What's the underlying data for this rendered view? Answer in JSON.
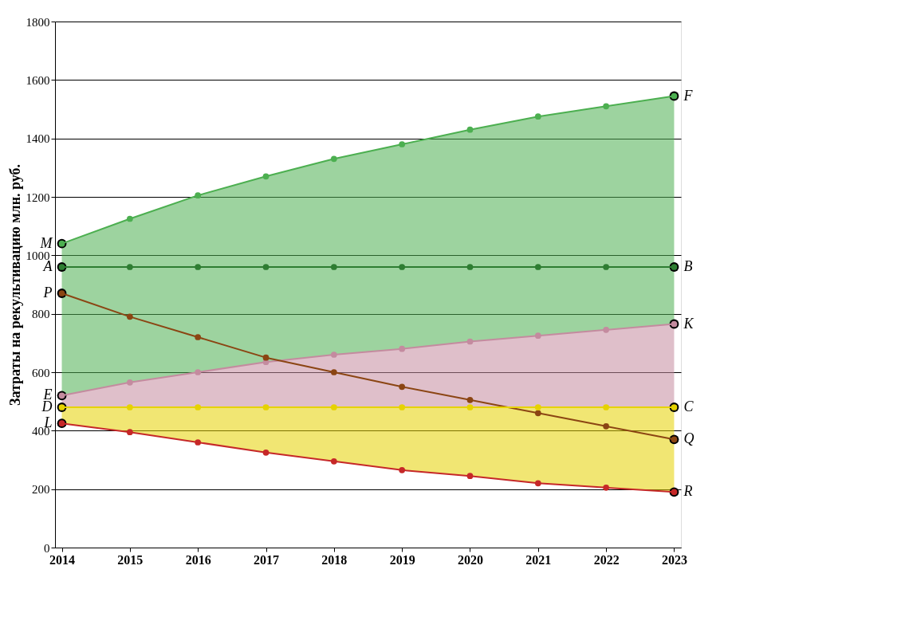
{
  "chart_data": {
    "type": "line",
    "ylabel": "Затраты на рекультивацию млн. руб.",
    "categories": [
      "2014",
      "2015",
      "2016",
      "2017",
      "2018",
      "2019",
      "2020",
      "2021",
      "2022",
      "2023"
    ],
    "series": [
      {
        "color": "#4caf50",
        "values": [
          1040,
          1125,
          1205,
          1270,
          1330,
          1380,
          1430,
          1475,
          1510,
          1545
        ],
        "lower": [
          520,
          565,
          600,
          635,
          660,
          680,
          705,
          725,
          745,
          765
        ],
        "upper": [
          1040,
          1125,
          1205,
          1270,
          1330,
          1380,
          1430,
          1475,
          1510,
          1545
        ]
      },
      {
        "color": "#2e7d32",
        "values": [
          960,
          960,
          960,
          960,
          960,
          960,
          960,
          960,
          960,
          960
        ]
      },
      {
        "color": "#c48b9f",
        "values": [
          520,
          565,
          600,
          635,
          660,
          680,
          705,
          725,
          745,
          765
        ],
        "lower": [
          480,
          480,
          480,
          480,
          480,
          480,
          480,
          480,
          480,
          480
        ],
        "upper": [
          520,
          565,
          600,
          635,
          660,
          680,
          705,
          725,
          745,
          765
        ]
      },
      {
        "color": "#8b4513",
        "values": [
          870,
          790,
          720,
          650,
          600,
          550,
          505,
          460,
          415,
          370
        ]
      },
      {
        "color": "#e6d200",
        "values": [
          480,
          480,
          480,
          480,
          480,
          480,
          480,
          480,
          480,
          480
        ],
        "lower": [
          425,
          395,
          360,
          325,
          295,
          265,
          245,
          220,
          205,
          190
        ],
        "upper": [
          480,
          480,
          480,
          480,
          480,
          480,
          480,
          480,
          480,
          480
        ]
      },
      {
        "color": "#c62828",
        "values": [
          425,
          395,
          360,
          325,
          295,
          265,
          245,
          220,
          205,
          190
        ]
      }
    ],
    "ylim": [
      0,
      1800
    ],
    "yticks": [
      0,
      200,
      400,
      600,
      800,
      1000,
      1200,
      1400,
      1600,
      1800
    ],
    "grid": "y",
    "marker": "circle",
    "annotations": [
      {
        "text": "M",
        "x": "2014",
        "y": 1040
      },
      {
        "text": "A",
        "x": "2014",
        "y": 960
      },
      {
        "text": "P",
        "x": "2014",
        "y": 870
      },
      {
        "text": "E",
        "x": "2014",
        "y": 520
      },
      {
        "text": "D",
        "x": "2014",
        "y": 480
      },
      {
        "text": "L",
        "x": "2014",
        "y": 425
      },
      {
        "text": "F",
        "x": "2023",
        "y": 1545
      },
      {
        "text": "B",
        "x": "2023",
        "y": 960
      },
      {
        "text": "K",
        "x": "2023",
        "y": 765
      },
      {
        "text": "C",
        "x": "2023",
        "y": 480
      },
      {
        "text": "Q",
        "x": "2023",
        "y": 370
      },
      {
        "text": "R",
        "x": "2023",
        "y": 190
      }
    ]
  }
}
